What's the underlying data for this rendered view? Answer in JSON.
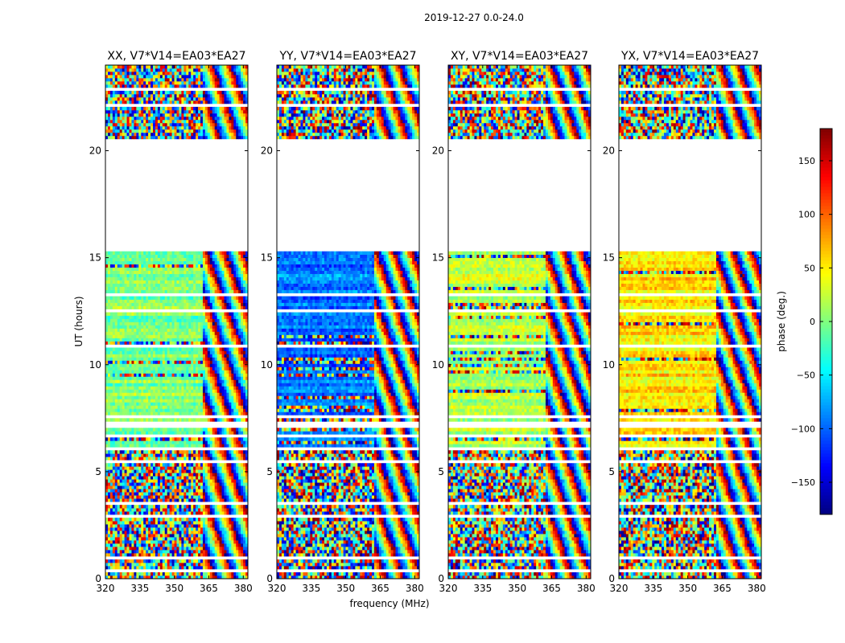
{
  "chart_data": {
    "type": "heatmap",
    "suptitle": "2019-12-27 0.0-24.0",
    "xlabel": "frequency (MHz)",
    "ylabel": "UT (hours)",
    "xlim": [
      320,
      382
    ],
    "ylim": [
      0,
      24
    ],
    "xticks": [
      320,
      335,
      350,
      365,
      380
    ],
    "yticks": [
      0,
      5,
      10,
      15,
      20
    ],
    "panels": [
      {
        "title": "XX, V7*V14=EA03*EA27",
        "mean_phase": 0
      },
      {
        "title": "YY, V7*V14=EA03*EA27",
        "mean_phase": -95
      },
      {
        "title": "XY, V7*V14=EA03*EA27",
        "mean_phase": 20
      },
      {
        "title": "YX, V7*V14=EA03*EA27",
        "mean_phase": 55
      }
    ],
    "fringe_start_freq": 362,
    "gap_hours": [
      [
        0.3,
        0.4
      ],
      [
        0.95,
        1.0
      ],
      [
        1.45,
        1.55
      ],
      [
        2.85,
        3.05
      ],
      [
        3.45,
        3.55
      ],
      [
        4.5,
        4.55
      ],
      [
        5.45,
        5.6
      ],
      [
        6.05,
        6.15
      ],
      [
        6.65,
        6.75
      ],
      [
        7.05,
        7.4
      ],
      [
        7.55,
        7.6
      ],
      [
        8.5,
        8.55
      ],
      [
        10.8,
        10.9
      ],
      [
        12.45,
        12.55
      ],
      [
        13.25,
        13.3
      ],
      [
        15.25,
        20.55
      ],
      [
        21.1,
        21.15
      ],
      [
        22.1,
        22.2
      ],
      [
        22.85,
        22.95
      ],
      [
        23.5,
        23.55
      ]
    ],
    "colorbar": {
      "label": "phase (deg.)",
      "range": [
        -180,
        180
      ],
      "ticks": [
        -150,
        -100,
        -50,
        0,
        50,
        100,
        150
      ],
      "tick_labels": [
        "−150",
        "−100",
        "−50",
        "0",
        "50",
        "100",
        "150"
      ],
      "colormap": "jet"
    }
  }
}
